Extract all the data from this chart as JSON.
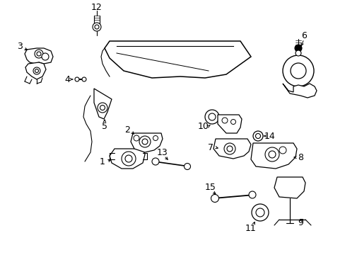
{
  "background_color": "#ffffff",
  "line_color": "#000000",
  "fig_width": 4.89,
  "fig_height": 3.6,
  "dpi": 100,
  "font_size": 9
}
